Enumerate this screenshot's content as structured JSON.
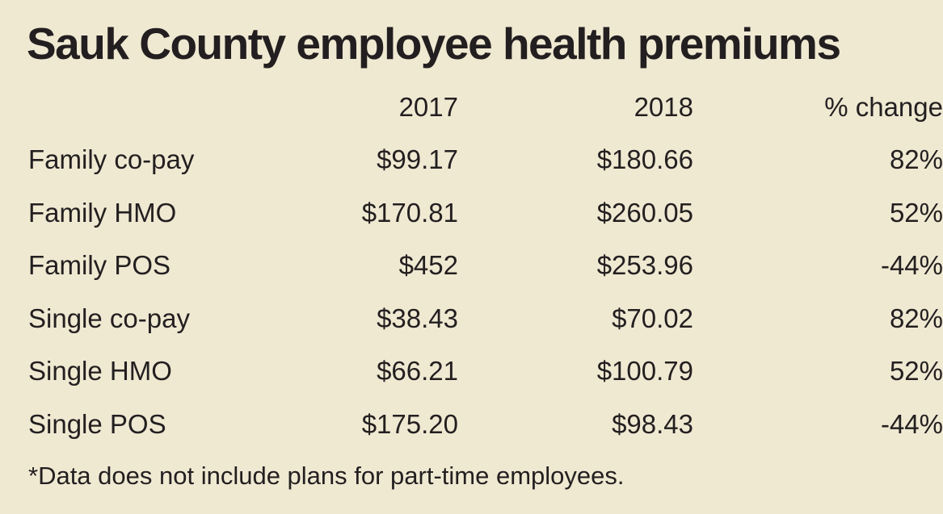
{
  "chart_data": {
    "type": "table",
    "title": "Sauk County employee health premiums",
    "columns": [
      "",
      "2017",
      "2018",
      "% change"
    ],
    "rows": [
      {
        "label": "Family co-pay",
        "y2017": "$99.17",
        "y2018": "$180.66",
        "change": "82%"
      },
      {
        "label": "Family HMO",
        "y2017": "$170.81",
        "y2018": "$260.05",
        "change": "52%"
      },
      {
        "label": "Family POS",
        "y2017": "$452",
        "y2018": "$253.96",
        "change": "-44%"
      },
      {
        "label": "Single co-pay",
        "y2017": "$38.43",
        "y2018": "$70.02",
        "change": "82%"
      },
      {
        "label": "Single HMO",
        "y2017": "$66.21",
        "y2018": "$100.79",
        "change": "52%"
      },
      {
        "label": "Single POS",
        "y2017": "$175.20",
        "y2018": "$98.43",
        "change": "-44%"
      }
    ],
    "footnote": "*Data does not include plans for part-time employees."
  },
  "colors": {
    "background": "#efe9d2",
    "text": "#231f20"
  }
}
